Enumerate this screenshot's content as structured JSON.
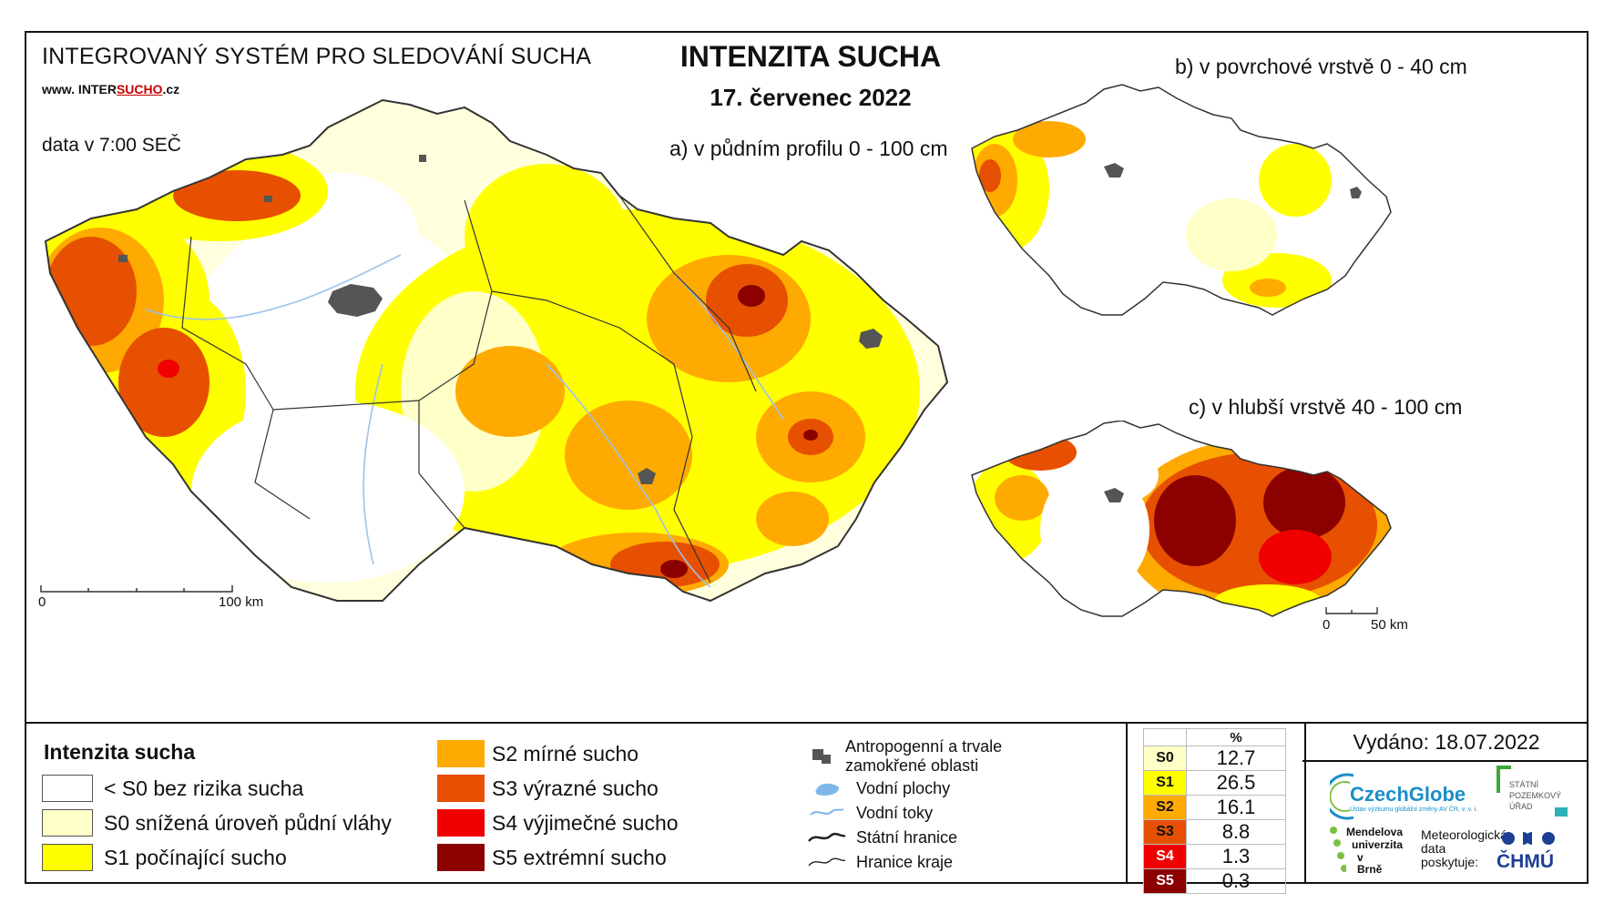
{
  "header": {
    "system_name": "INTEGROVANÝ SYSTÉM PRO SLEDOVÁNÍ SUCHA",
    "website_prefix": "www. INTER",
    "website_highlight": "SUCHO",
    "website_suffix": ".cz",
    "data_time": "data v 7:00 SEČ",
    "title": "INTENZITA SUCHA",
    "date": "17. červenec 2022"
  },
  "maps": {
    "main_label": "a) v půdním profilu 0 - 100 cm",
    "top_label": "b) v povrchové vrstvě 0 - 40 cm",
    "deep_label": "c) v hlubší vrstvě 40 - 100 cm",
    "main_scale": {
      "start": "0",
      "end": "100 km"
    },
    "small_scale": {
      "start": "0",
      "end": "50 km"
    }
  },
  "legend": {
    "title": "Intenzita sucha",
    "classes": [
      {
        "label": "< S0 bez rizika sucha",
        "color": "#ffffff"
      },
      {
        "label": "S0 snížená úroveň půdní vláhy",
        "color": "#ffffc8"
      },
      {
        "label": "S1 počínající sucho",
        "color": "#ffff00"
      },
      {
        "label": "S2 mírné sucho",
        "color": "#ffaa00"
      },
      {
        "label": "S3 výrazné sucho",
        "color": "#e65000"
      },
      {
        "label": "S4 výjimečné sucho",
        "color": "#f00000"
      },
      {
        "label": "S5 extrémní sucho",
        "color": "#8c0000"
      }
    ],
    "symbols": {
      "anthropogenic": "Antropogenní a trvale zamokřené oblasti",
      "water_bodies": "Vodní plochy",
      "water_streams": "Vodní toky",
      "state_border": "Státní hranice",
      "region_border": "Hranice kraje"
    }
  },
  "percent_table": {
    "header": "%",
    "rows": [
      {
        "cls": "S0",
        "value": "12.7",
        "color": "#ffffc8"
      },
      {
        "cls": "S1",
        "value": "26.5",
        "color": "#ffff00"
      },
      {
        "cls": "S2",
        "value": "16.1",
        "color": "#ffaa00"
      },
      {
        "cls": "S3",
        "value": "8.8",
        "color": "#e65000"
      },
      {
        "cls": "S4",
        "value": "1.3",
        "color": "#f00000"
      },
      {
        "cls": "S5",
        "value": "0.3",
        "color": "#8c0000"
      }
    ]
  },
  "footer": {
    "issued": "Vydáno: 18.07.2022",
    "czechglobe": "CzechGlobe",
    "czechglobe_sub": "Ústav výzkumu globální změny AV ČR, v. v. i.",
    "spu": [
      "STÁTNÍ",
      "POZEMKOVÝ",
      "ÚŘAD"
    ],
    "mendel": [
      "Mendelova",
      "univerzita",
      "v Brně"
    ],
    "meteo": [
      "Meteorologická",
      "data",
      "poskytuje:"
    ],
    "chmu": "ČHMÚ"
  }
}
